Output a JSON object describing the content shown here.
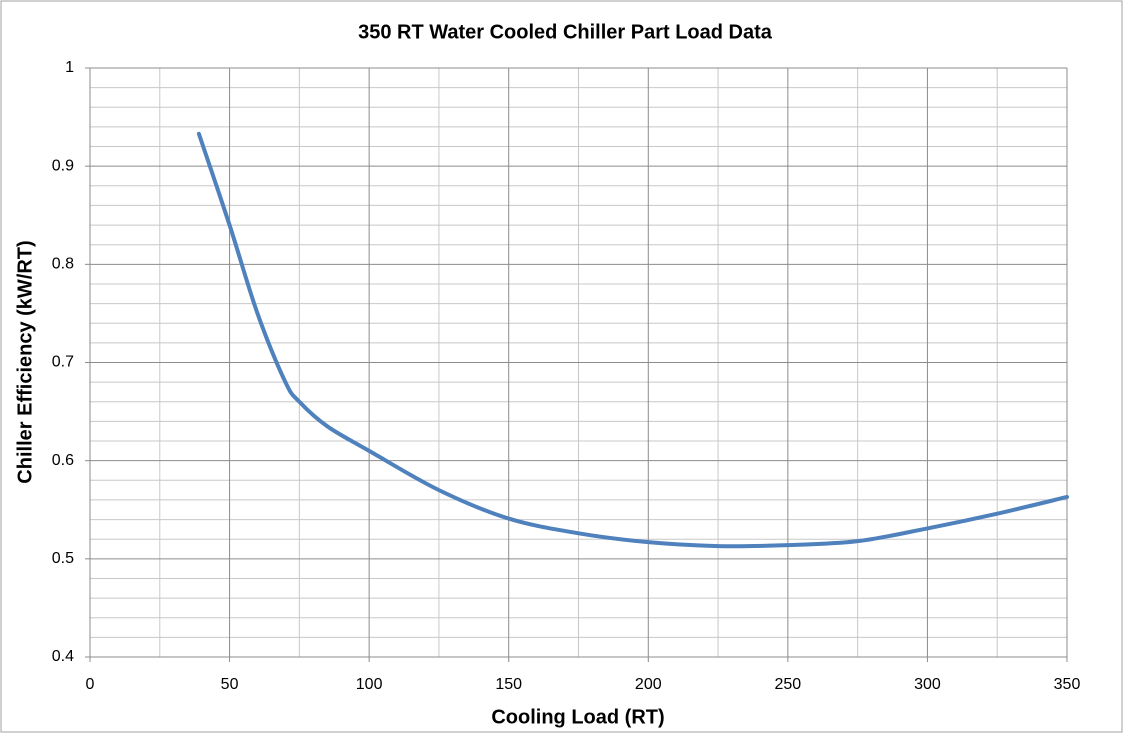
{
  "chart_data": {
    "type": "line",
    "title": "350 RT Water Cooled Chiller Part Load Data",
    "x_label": "Cooling Load (RT)",
    "y_label": "Chiller  Efficiency  (kW/RT)",
    "x": [
      39,
      50,
      60,
      70,
      75,
      85,
      100,
      125,
      150,
      175,
      200,
      225,
      250,
      275,
      300,
      325,
      350
    ],
    "series": [
      {
        "name": "Chiller Efficiency",
        "color": "#4f81bd",
        "values": [
          0.933,
          0.84,
          0.75,
          0.68,
          0.66,
          0.635,
          0.61,
          0.57,
          0.541,
          0.526,
          0.517,
          0.513,
          0.514,
          0.518,
          0.531,
          0.546,
          0.563
        ]
      }
    ],
    "xlim": [
      0,
      350
    ],
    "xticks": [
      0,
      50,
      100,
      150,
      200,
      250,
      300,
      350
    ],
    "ylim": [
      0.4,
      1
    ],
    "yticks": [
      0.4,
      0.5,
      0.6,
      0.7,
      0.8,
      0.9,
      1
    ],
    "grid": true,
    "legend": false
  }
}
